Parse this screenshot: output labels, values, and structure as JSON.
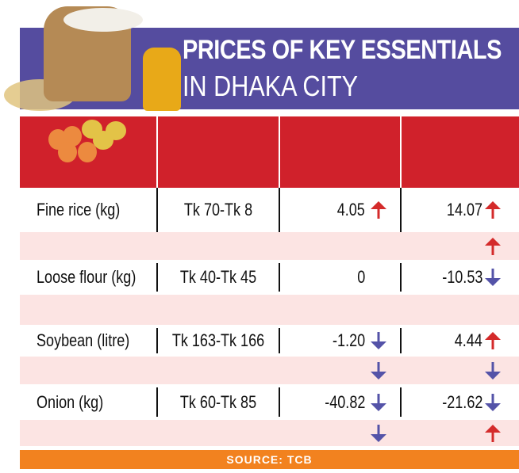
{
  "title": {
    "line1": "PRICES OF KEY ESSENTIALS",
    "line2": "IN DHAKA CITY"
  },
  "colors": {
    "banner": "#554c9f",
    "header": "#d0212b",
    "up": "#d42b2b",
    "down": "#5453a8",
    "source": "#f2821f",
    "stripe": "#fce4e3"
  },
  "rows": [
    {
      "item": "Fine rice (kg)",
      "price": "Tk 70-Tk 8",
      "change1": "4.05",
      "arrow1": "up",
      "change2": "14.07",
      "arrow2": "up",
      "sub1": null,
      "sub2": "up"
    },
    {
      "item": "Loose flour (kg)",
      "price": "Tk 40-Tk 45",
      "change1": "0",
      "arrow1": null,
      "change2": "-10.53",
      "arrow2": "down",
      "sub1": null,
      "sub2": null
    },
    {
      "item": "Soybean (litre)",
      "price": "Tk 163-Tk 166",
      "change1": "-1.20",
      "arrow1": "down",
      "change2": "4.44",
      "arrow2": "up",
      "sub1": "down",
      "sub2": "down"
    },
    {
      "item": "Onion (kg)",
      "price": "Tk 60-Tk 85",
      "change1": "-40.82",
      "arrow1": "down",
      "change2": "-21.62",
      "arrow2": "down",
      "sub1": "down",
      "sub2": "up"
    }
  ],
  "source": "SOURCE: TCB"
}
